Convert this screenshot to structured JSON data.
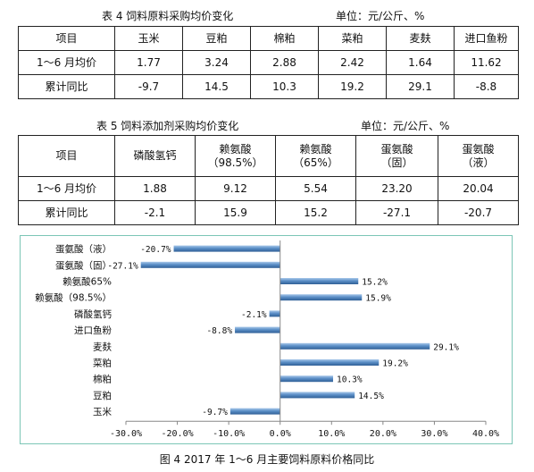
{
  "table4": {
    "title": "表 4    饲料原料采购均价变化",
    "unit": "单位：元/公斤、%",
    "header": [
      "项目",
      "玉米",
      "豆粕",
      "棉粕",
      "菜粕",
      "麦麸",
      "进口鱼粉"
    ],
    "rows": [
      [
        "1～6 月均价",
        "1.77",
        "3.24",
        "2.88",
        "2.42",
        "1.64",
        "11.62"
      ],
      [
        "累计同比",
        "-9.7",
        "14.5",
        "10.3",
        "19.2",
        "29.1",
        "-8.8"
      ]
    ]
  },
  "table5": {
    "title": "表 5    饲料添加剂采购均价变化",
    "unit": "单位：元/公斤、%",
    "header": [
      {
        "l1": "项目",
        "l2": ""
      },
      {
        "l1": "磷酸氢钙",
        "l2": ""
      },
      {
        "l1": "赖氨酸",
        "l2": "（98.5%）"
      },
      {
        "l1": "赖氨酸",
        "l2": "（65%）"
      },
      {
        "l1": "蛋氨酸",
        "l2": "（固）"
      },
      {
        "l1": "蛋氨酸",
        "l2": "（液）"
      }
    ],
    "rows": [
      [
        "1～6 月均价",
        "1.88",
        "9.12",
        "5.54",
        "23.20",
        "20.04"
      ],
      [
        "累计同比",
        "-2.1",
        "15.9",
        "15.2",
        "-27.1",
        "-20.7"
      ]
    ]
  },
  "chart_data": {
    "type": "bar",
    "orientation": "horizontal",
    "categories": [
      "蛋氨酸（液）",
      "蛋氨酸（固）",
      "赖氨酸65%",
      "赖氨酸（98.5%）",
      "磷酸氢钙",
      "进口鱼粉",
      "麦麸",
      "菜粕",
      "棉粕",
      "豆粕",
      "玉米"
    ],
    "values": [
      -20.7,
      -27.1,
      15.2,
      15.9,
      -2.1,
      -8.8,
      29.1,
      19.2,
      10.3,
      14.5,
      -9.7
    ],
    "value_labels": [
      "-20.7%",
      "-27.1%",
      "15.2%",
      "15.9%",
      "-2.1%",
      "-8.8%",
      "29.1%",
      "19.2%",
      "10.3%",
      "14.5%",
      "-9.7%"
    ],
    "xlim": [
      -30,
      40
    ],
    "xticks": [
      -30,
      -20,
      -10,
      0,
      10,
      20,
      30,
      40
    ],
    "xtick_labels": [
      "-30.0%",
      "-20.0%",
      "-10.0%",
      "0.0%",
      "10.0%",
      "20.0%",
      "30.0%",
      "40.0%"
    ],
    "grid": false,
    "bar_color": "#5b8fc7",
    "border_color": "#7cc6b6"
  },
  "figure_caption": "图 4    2017 年 1～6 月主要饲料原料价格同比"
}
